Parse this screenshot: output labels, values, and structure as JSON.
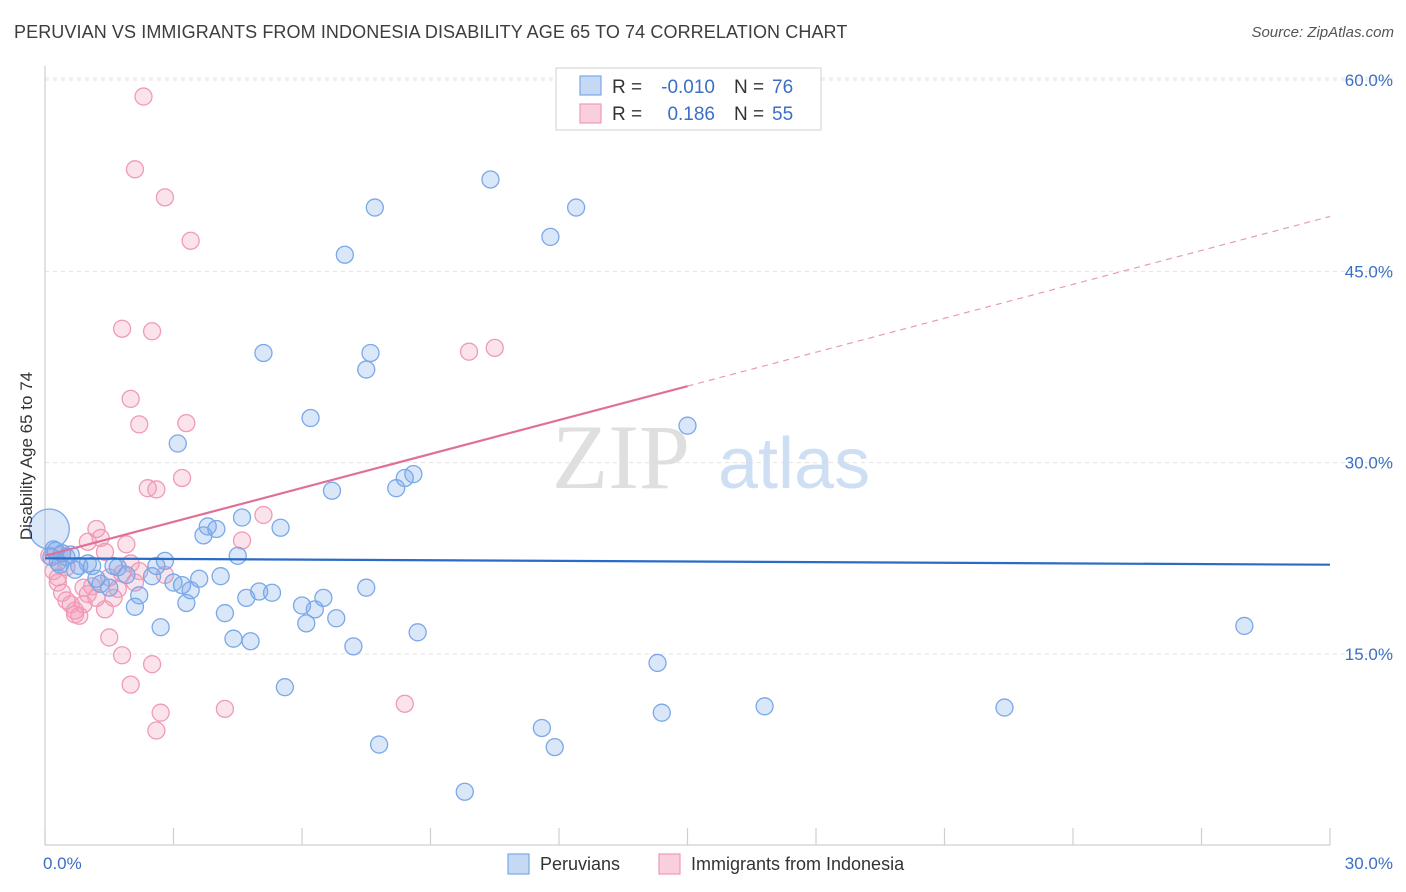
{
  "title": "PERUVIAN VS IMMIGRANTS FROM INDONESIA DISABILITY AGE 65 TO 74 CORRELATION CHART",
  "source": "Source: ZipAtlas.com",
  "watermark": {
    "zip": "ZIP",
    "atlas": "atlas"
  },
  "chart_data": {
    "type": "scatter",
    "ylabel": "Disability Age 65 to 74",
    "xlabel": "",
    "xlim": [
      0,
      30
    ],
    "ylim": [
      0,
      63
    ],
    "x_tick_labels": [
      "0.0%",
      "30.0%"
    ],
    "y_ticks": [
      15,
      30,
      45,
      60
    ],
    "y_tick_labels": [
      "15.0%",
      "30.0%",
      "45.0%",
      "60.0%"
    ],
    "legend": [
      {
        "r_label": "R =",
        "r_value": "-0.010",
        "n_label": "N =",
        "n_value": "76",
        "color": "#7aa8e8"
      },
      {
        "r_label": "R =",
        "r_value": "0.186",
        "n_label": "N =",
        "n_value": "55",
        "color": "#f09ab8"
      }
    ],
    "series": [
      {
        "name": "Peruvians",
        "color": "#7aa8e8",
        "trend": {
          "x0": 0,
          "y0": 22.5,
          "x1": 30,
          "y1": 22.0,
          "color": "#2a6bc8"
        },
        "points": [
          [
            0.1,
            24.8
          ],
          [
            0.2,
            23.2
          ],
          [
            0.3,
            22.2
          ],
          [
            0.4,
            22.9
          ],
          [
            0.5,
            22.6
          ],
          [
            0.6,
            22.8
          ],
          [
            0.7,
            21.6
          ],
          [
            0.8,
            21.9
          ],
          [
            1.0,
            22.1
          ],
          [
            1.1,
            21.9
          ],
          [
            1.2,
            20.9
          ],
          [
            1.3,
            20.5
          ],
          [
            1.5,
            20.2
          ],
          [
            1.6,
            21.9
          ],
          [
            1.7,
            21.8
          ],
          [
            1.9,
            21.2
          ],
          [
            2.1,
            18.7
          ],
          [
            2.2,
            19.6
          ],
          [
            2.5,
            21.1
          ],
          [
            2.6,
            21.9
          ],
          [
            2.7,
            17.1
          ],
          [
            2.8,
            22.3
          ],
          [
            3.0,
            20.6
          ],
          [
            3.1,
            31.5
          ],
          [
            3.2,
            20.4
          ],
          [
            3.3,
            19.0
          ],
          [
            3.4,
            20.0
          ],
          [
            3.6,
            20.9
          ],
          [
            3.7,
            24.3
          ],
          [
            3.8,
            25.0
          ],
          [
            4.0,
            24.8
          ],
          [
            4.1,
            21.1
          ],
          [
            4.2,
            18.2
          ],
          [
            4.4,
            16.2
          ],
          [
            4.5,
            22.7
          ],
          [
            4.6,
            25.7
          ],
          [
            4.7,
            19.4
          ],
          [
            4.8,
            16.0
          ],
          [
            5.0,
            19.9
          ],
          [
            5.1,
            38.6
          ],
          [
            5.3,
            19.8
          ],
          [
            5.5,
            24.9
          ],
          [
            5.6,
            12.4
          ],
          [
            6.0,
            18.8
          ],
          [
            6.1,
            17.4
          ],
          [
            6.2,
            33.5
          ],
          [
            6.3,
            18.5
          ],
          [
            6.5,
            19.4
          ],
          [
            6.7,
            27.8
          ],
          [
            6.8,
            17.8
          ],
          [
            7.0,
            46.3
          ],
          [
            7.2,
            15.6
          ],
          [
            7.5,
            37.3
          ],
          [
            7.5,
            20.2
          ],
          [
            7.6,
            38.6
          ],
          [
            7.7,
            50.0
          ],
          [
            7.8,
            7.9
          ],
          [
            8.2,
            28.0
          ],
          [
            8.4,
            28.8
          ],
          [
            8.6,
            29.1
          ],
          [
            8.7,
            16.7
          ],
          [
            9.8,
            4.2
          ],
          [
            10.4,
            52.2
          ],
          [
            11.6,
            9.2
          ],
          [
            11.8,
            47.7
          ],
          [
            11.9,
            7.7
          ],
          [
            12.4,
            50.0
          ],
          [
            14.3,
            14.3
          ],
          [
            14.4,
            10.4
          ],
          [
            15.0,
            32.9
          ],
          [
            16.8,
            10.9
          ],
          [
            22.4,
            10.8
          ],
          [
            28.0,
            17.2
          ],
          [
            0.15,
            22.6
          ],
          [
            0.25,
            23.1
          ],
          [
            0.35,
            22.0
          ]
        ]
      },
      {
        "name": "Immigrants from Indonesia",
        "color": "#f09ab8",
        "trend": {
          "x0": 0,
          "y0": 22.7,
          "x1": 15,
          "y1": 36.0,
          "dash_x1": 30,
          "dash_y1": 49.3,
          "color": "#e07098"
        },
        "points": [
          [
            0.1,
            22.7
          ],
          [
            0.2,
            21.5
          ],
          [
            0.3,
            20.6
          ],
          [
            0.4,
            19.8
          ],
          [
            0.5,
            19.2
          ],
          [
            0.6,
            18.9
          ],
          [
            0.7,
            18.4
          ],
          [
            0.8,
            18.0
          ],
          [
            0.9,
            18.9
          ],
          [
            1.0,
            19.7
          ],
          [
            1.1,
            20.3
          ],
          [
            1.2,
            24.8
          ],
          [
            1.3,
            24.1
          ],
          [
            1.4,
            23.0
          ],
          [
            1.5,
            21.0
          ],
          [
            1.6,
            19.4
          ],
          [
            1.7,
            20.1
          ],
          [
            1.8,
            21.3
          ],
          [
            1.9,
            23.6
          ],
          [
            2.0,
            22.1
          ],
          [
            2.1,
            20.6
          ],
          [
            2.2,
            21.5
          ],
          [
            1.5,
            16.3
          ],
          [
            1.8,
            14.9
          ],
          [
            2.0,
            12.6
          ],
          [
            2.5,
            14.2
          ],
          [
            2.7,
            10.4
          ],
          [
            2.6,
            9.0
          ],
          [
            2.4,
            28.0
          ],
          [
            2.2,
            33.0
          ],
          [
            2.0,
            35.0
          ],
          [
            2.5,
            40.3
          ],
          [
            1.8,
            40.5
          ],
          [
            3.4,
            47.4
          ],
          [
            2.8,
            50.8
          ],
          [
            2.1,
            53.0
          ],
          [
            2.3,
            58.7
          ],
          [
            3.2,
            28.8
          ],
          [
            2.6,
            27.9
          ],
          [
            3.3,
            33.1
          ],
          [
            4.2,
            10.7
          ],
          [
            4.6,
            23.9
          ],
          [
            5.1,
            25.9
          ],
          [
            8.4,
            11.1
          ],
          [
            9.9,
            38.7
          ],
          [
            10.5,
            39.0
          ],
          [
            0.5,
            21.8
          ],
          [
            0.7,
            18.1
          ],
          [
            0.3,
            21.0
          ],
          [
            0.4,
            22.9
          ],
          [
            1.0,
            23.8
          ],
          [
            1.2,
            19.4
          ],
          [
            1.4,
            18.5
          ],
          [
            0.9,
            20.2
          ],
          [
            2.8,
            21.2
          ]
        ]
      }
    ]
  },
  "bottom_legend": [
    {
      "label": "Peruvians",
      "color": "#7aa8e8"
    },
    {
      "label": "Immigrants from Indonesia",
      "color": "#f09ab8"
    }
  ]
}
